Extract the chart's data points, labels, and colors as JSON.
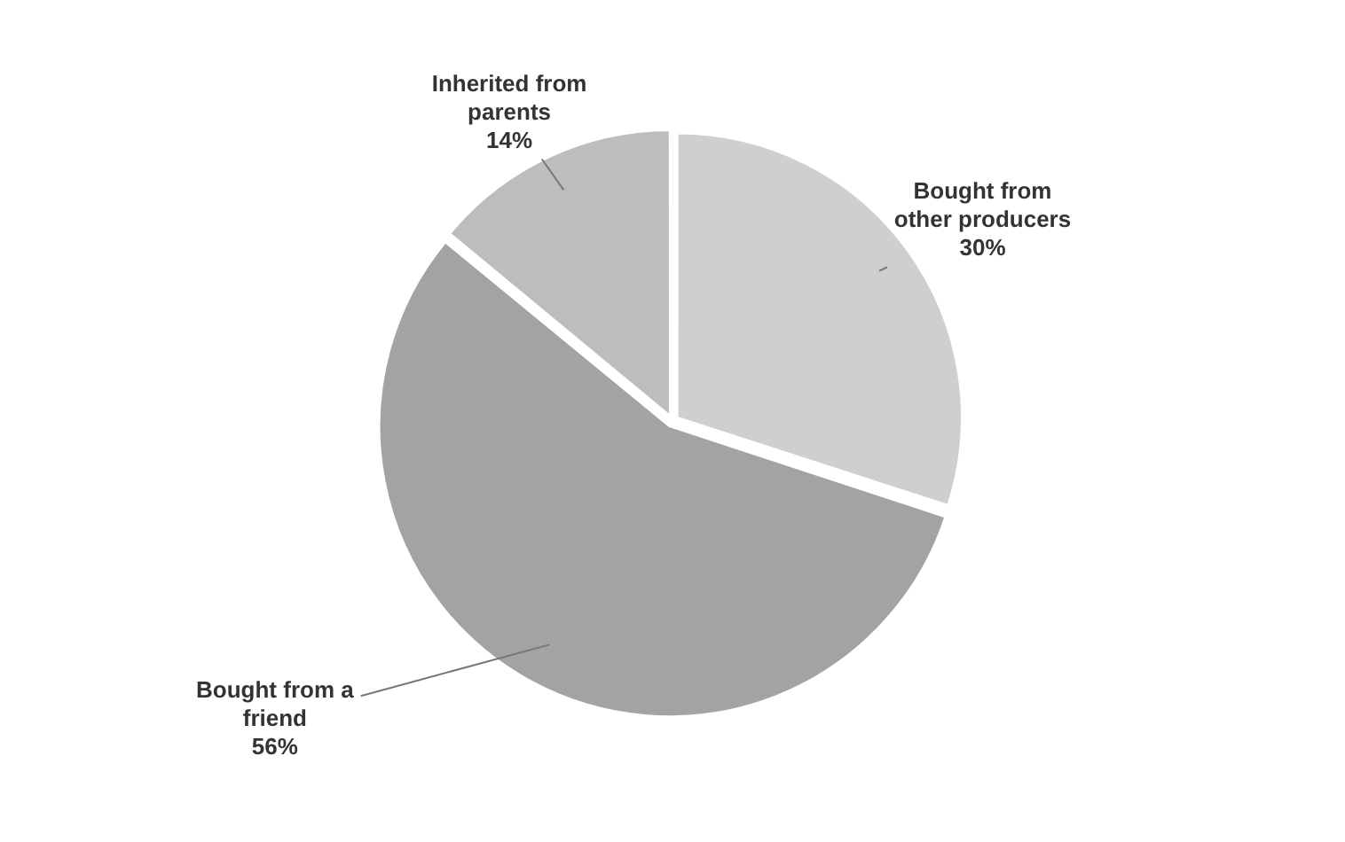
{
  "chart_data": {
    "type": "pie",
    "categories": [
      "Bought from other producers",
      "Bought from a friend",
      "Inherited from parents"
    ],
    "values": [
      30,
      56,
      14
    ],
    "colors": [
      "#cfcfcf",
      "#a3a3a3",
      "#bdbdbd"
    ],
    "value_labels": [
      "30%",
      "56%",
      "14%"
    ],
    "legend": false
  }
}
